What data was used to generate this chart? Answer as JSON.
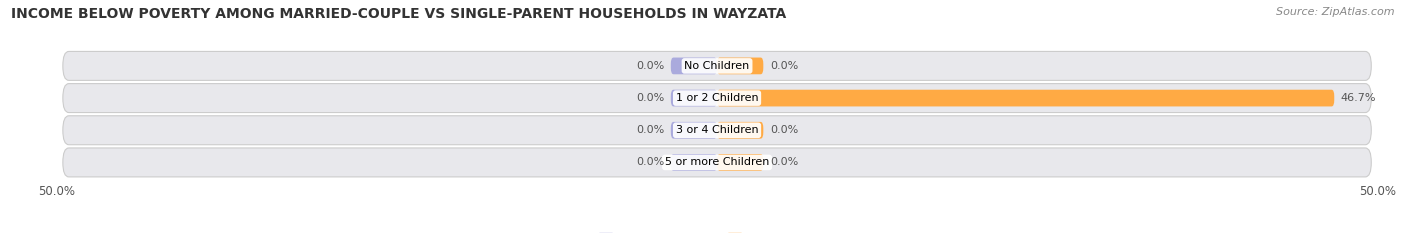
{
  "title": "INCOME BELOW POVERTY AMONG MARRIED-COUPLE VS SINGLE-PARENT HOUSEHOLDS IN WAYZATA",
  "source": "Source: ZipAtlas.com",
  "categories": [
    "No Children",
    "1 or 2 Children",
    "3 or 4 Children",
    "5 or more Children"
  ],
  "married_values": [
    0.0,
    0.0,
    0.0,
    0.0
  ],
  "single_values": [
    0.0,
    46.7,
    0.0,
    0.0
  ],
  "xlim": [
    -50,
    50
  ],
  "x_ticks": [
    -50,
    50
  ],
  "x_tick_labels": [
    "50.0%",
    "50.0%"
  ],
  "married_color": "#aaaadd",
  "single_color": "#ffaa44",
  "row_bg_color": "#e8e8ec",
  "title_fontsize": 10,
  "source_fontsize": 8,
  "label_fontsize": 8.5,
  "category_fontsize": 8,
  "value_fontsize": 8,
  "legend_fontsize": 9
}
